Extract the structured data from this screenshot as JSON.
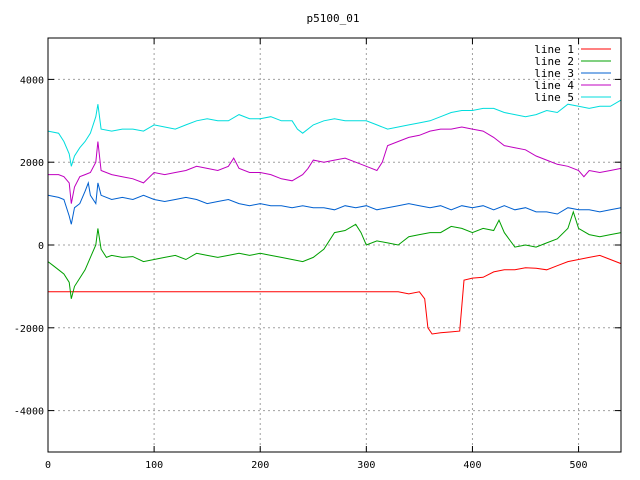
{
  "chart_data": {
    "type": "line",
    "title": "p5100_01",
    "xlabel": "",
    "ylabel": "",
    "xlim": [
      0,
      540
    ],
    "ylim": [
      -5000,
      5000
    ],
    "grid": true,
    "legend_position": "top-right",
    "x_ticks": [
      0,
      100,
      200,
      300,
      400,
      500
    ],
    "y_ticks": [
      -4000,
      -2000,
      0,
      2000,
      4000
    ],
    "series": [
      {
        "name": "line 1",
        "color": "#ff0000",
        "points": [
          [
            0,
            -1130
          ],
          [
            100,
            -1130
          ],
          [
            200,
            -1130
          ],
          [
            300,
            -1130
          ],
          [
            330,
            -1130
          ],
          [
            340,
            -1180
          ],
          [
            350,
            -1130
          ],
          [
            355,
            -1300
          ],
          [
            358,
            -2000
          ],
          [
            362,
            -2150
          ],
          [
            370,
            -2120
          ],
          [
            380,
            -2100
          ],
          [
            388,
            -2080
          ],
          [
            392,
            -850
          ],
          [
            400,
            -800
          ],
          [
            410,
            -780
          ],
          [
            420,
            -650
          ],
          [
            430,
            -600
          ],
          [
            440,
            -600
          ],
          [
            450,
            -550
          ],
          [
            460,
            -560
          ],
          [
            470,
            -600
          ],
          [
            480,
            -500
          ],
          [
            490,
            -400
          ],
          [
            500,
            -350
          ],
          [
            510,
            -300
          ],
          [
            520,
            -250
          ],
          [
            530,
            -350
          ],
          [
            540,
            -450
          ]
        ]
      },
      {
        "name": "line 2",
        "color": "#00a000",
        "points": [
          [
            0,
            -400
          ],
          [
            5,
            -500
          ],
          [
            10,
            -600
          ],
          [
            15,
            -700
          ],
          [
            20,
            -900
          ],
          [
            22,
            -1300
          ],
          [
            25,
            -1000
          ],
          [
            30,
            -800
          ],
          [
            35,
            -600
          ],
          [
            40,
            -300
          ],
          [
            45,
            0
          ],
          [
            47,
            400
          ],
          [
            50,
            -100
          ],
          [
            55,
            -300
          ],
          [
            60,
            -250
          ],
          [
            70,
            -300
          ],
          [
            80,
            -280
          ],
          [
            90,
            -400
          ],
          [
            100,
            -350
          ],
          [
            110,
            -300
          ],
          [
            120,
            -250
          ],
          [
            130,
            -350
          ],
          [
            140,
            -200
          ],
          [
            150,
            -250
          ],
          [
            160,
            -300
          ],
          [
            170,
            -250
          ],
          [
            180,
            -200
          ],
          [
            190,
            -250
          ],
          [
            200,
            -200
          ],
          [
            210,
            -250
          ],
          [
            220,
            -300
          ],
          [
            230,
            -350
          ],
          [
            240,
            -400
          ],
          [
            250,
            -300
          ],
          [
            260,
            -100
          ],
          [
            270,
            300
          ],
          [
            280,
            350
          ],
          [
            290,
            500
          ],
          [
            295,
            300
          ],
          [
            300,
            0
          ],
          [
            310,
            100
          ],
          [
            320,
            50
          ],
          [
            330,
            0
          ],
          [
            340,
            200
          ],
          [
            350,
            250
          ],
          [
            360,
            300
          ],
          [
            370,
            300
          ],
          [
            380,
            450
          ],
          [
            390,
            400
          ],
          [
            400,
            300
          ],
          [
            410,
            400
          ],
          [
            420,
            350
          ],
          [
            425,
            600
          ],
          [
            430,
            300
          ],
          [
            440,
            -50
          ],
          [
            450,
            0
          ],
          [
            460,
            -50
          ],
          [
            470,
            50
          ],
          [
            480,
            150
          ],
          [
            490,
            400
          ],
          [
            495,
            800
          ],
          [
            500,
            400
          ],
          [
            510,
            250
          ],
          [
            520,
            200
          ],
          [
            530,
            250
          ],
          [
            540,
            300
          ]
        ]
      },
      {
        "name": "line 3",
        "color": "#0060d0",
        "points": [
          [
            0,
            1200
          ],
          [
            10,
            1150
          ],
          [
            15,
            1100
          ],
          [
            20,
            700
          ],
          [
            22,
            500
          ],
          [
            25,
            900
          ],
          [
            30,
            1000
          ],
          [
            35,
            1300
          ],
          [
            38,
            1500
          ],
          [
            40,
            1200
          ],
          [
            45,
            1000
          ],
          [
            47,
            1500
          ],
          [
            50,
            1200
          ],
          [
            60,
            1100
          ],
          [
            70,
            1150
          ],
          [
            80,
            1100
          ],
          [
            90,
            1200
          ],
          [
            100,
            1100
          ],
          [
            110,
            1050
          ],
          [
            120,
            1100
          ],
          [
            130,
            1150
          ],
          [
            140,
            1100
          ],
          [
            150,
            1000
          ],
          [
            160,
            1050
          ],
          [
            170,
            1100
          ],
          [
            180,
            1000
          ],
          [
            190,
            950
          ],
          [
            200,
            1000
          ],
          [
            210,
            950
          ],
          [
            220,
            950
          ],
          [
            230,
            900
          ],
          [
            240,
            950
          ],
          [
            250,
            900
          ],
          [
            260,
            900
          ],
          [
            270,
            850
          ],
          [
            280,
            950
          ],
          [
            290,
            900
          ],
          [
            300,
            950
          ],
          [
            310,
            850
          ],
          [
            320,
            900
          ],
          [
            330,
            950
          ],
          [
            340,
            1000
          ],
          [
            350,
            950
          ],
          [
            360,
            900
          ],
          [
            370,
            950
          ],
          [
            380,
            850
          ],
          [
            390,
            950
          ],
          [
            400,
            900
          ],
          [
            410,
            950
          ],
          [
            420,
            850
          ],
          [
            430,
            950
          ],
          [
            440,
            850
          ],
          [
            450,
            900
          ],
          [
            460,
            800
          ],
          [
            470,
            800
          ],
          [
            480,
            750
          ],
          [
            490,
            900
          ],
          [
            500,
            850
          ],
          [
            510,
            850
          ],
          [
            520,
            800
          ],
          [
            530,
            850
          ],
          [
            540,
            900
          ]
        ]
      },
      {
        "name": "line 4",
        "color": "#c000c0",
        "points": [
          [
            0,
            1700
          ],
          [
            10,
            1700
          ],
          [
            15,
            1650
          ],
          [
            20,
            1500
          ],
          [
            22,
            1000
          ],
          [
            25,
            1400
          ],
          [
            30,
            1650
          ],
          [
            35,
            1700
          ],
          [
            40,
            1750
          ],
          [
            45,
            2000
          ],
          [
            47,
            2500
          ],
          [
            50,
            1800
          ],
          [
            60,
            1700
          ],
          [
            70,
            1650
          ],
          [
            80,
            1600
          ],
          [
            90,
            1500
          ],
          [
            100,
            1750
          ],
          [
            110,
            1700
          ],
          [
            120,
            1750
          ],
          [
            130,
            1800
          ],
          [
            140,
            1900
          ],
          [
            150,
            1850
          ],
          [
            160,
            1800
          ],
          [
            170,
            1900
          ],
          [
            175,
            2100
          ],
          [
            180,
            1850
          ],
          [
            190,
            1750
          ],
          [
            200,
            1750
          ],
          [
            210,
            1700
          ],
          [
            220,
            1600
          ],
          [
            230,
            1550
          ],
          [
            240,
            1700
          ],
          [
            245,
            1850
          ],
          [
            250,
            2050
          ],
          [
            260,
            2000
          ],
          [
            270,
            2050
          ],
          [
            280,
            2100
          ],
          [
            290,
            2000
          ],
          [
            300,
            1900
          ],
          [
            310,
            1800
          ],
          [
            315,
            2000
          ],
          [
            320,
            2400
          ],
          [
            330,
            2500
          ],
          [
            340,
            2600
          ],
          [
            350,
            2650
          ],
          [
            360,
            2750
          ],
          [
            370,
            2800
          ],
          [
            380,
            2800
          ],
          [
            390,
            2850
          ],
          [
            400,
            2800
          ],
          [
            410,
            2750
          ],
          [
            420,
            2600
          ],
          [
            430,
            2400
          ],
          [
            440,
            2350
          ],
          [
            450,
            2300
          ],
          [
            460,
            2150
          ],
          [
            470,
            2050
          ],
          [
            480,
            1950
          ],
          [
            490,
            1900
          ],
          [
            500,
            1800
          ],
          [
            505,
            1650
          ],
          [
            510,
            1800
          ],
          [
            520,
            1750
          ],
          [
            530,
            1800
          ],
          [
            540,
            1850
          ]
        ]
      },
      {
        "name": "line 5",
        "color": "#00dddd",
        "points": [
          [
            0,
            2750
          ],
          [
            10,
            2700
          ],
          [
            15,
            2500
          ],
          [
            20,
            2200
          ],
          [
            22,
            1900
          ],
          [
            25,
            2150
          ],
          [
            30,
            2350
          ],
          [
            35,
            2500
          ],
          [
            40,
            2700
          ],
          [
            45,
            3100
          ],
          [
            47,
            3400
          ],
          [
            50,
            2800
          ],
          [
            60,
            2750
          ],
          [
            70,
            2800
          ],
          [
            80,
            2800
          ],
          [
            90,
            2750
          ],
          [
            100,
            2900
          ],
          [
            110,
            2850
          ],
          [
            120,
            2800
          ],
          [
            130,
            2900
          ],
          [
            140,
            3000
          ],
          [
            150,
            3050
          ],
          [
            160,
            3000
          ],
          [
            170,
            3000
          ],
          [
            180,
            3150
          ],
          [
            190,
            3050
          ],
          [
            200,
            3050
          ],
          [
            210,
            3100
          ],
          [
            220,
            3000
          ],
          [
            230,
            3000
          ],
          [
            235,
            2800
          ],
          [
            240,
            2700
          ],
          [
            250,
            2900
          ],
          [
            260,
            3000
          ],
          [
            270,
            3050
          ],
          [
            280,
            3000
          ],
          [
            290,
            3000
          ],
          [
            300,
            3000
          ],
          [
            310,
            2900
          ],
          [
            320,
            2800
          ],
          [
            330,
            2850
          ],
          [
            340,
            2900
          ],
          [
            350,
            2950
          ],
          [
            360,
            3000
          ],
          [
            370,
            3100
          ],
          [
            380,
            3200
          ],
          [
            390,
            3250
          ],
          [
            400,
            3250
          ],
          [
            410,
            3300
          ],
          [
            420,
            3300
          ],
          [
            430,
            3200
          ],
          [
            440,
            3150
          ],
          [
            450,
            3100
          ],
          [
            460,
            3150
          ],
          [
            470,
            3250
          ],
          [
            480,
            3200
          ],
          [
            490,
            3400
          ],
          [
            500,
            3350
          ],
          [
            510,
            3300
          ],
          [
            520,
            3350
          ],
          [
            530,
            3350
          ],
          [
            540,
            3500
          ]
        ]
      }
    ]
  }
}
